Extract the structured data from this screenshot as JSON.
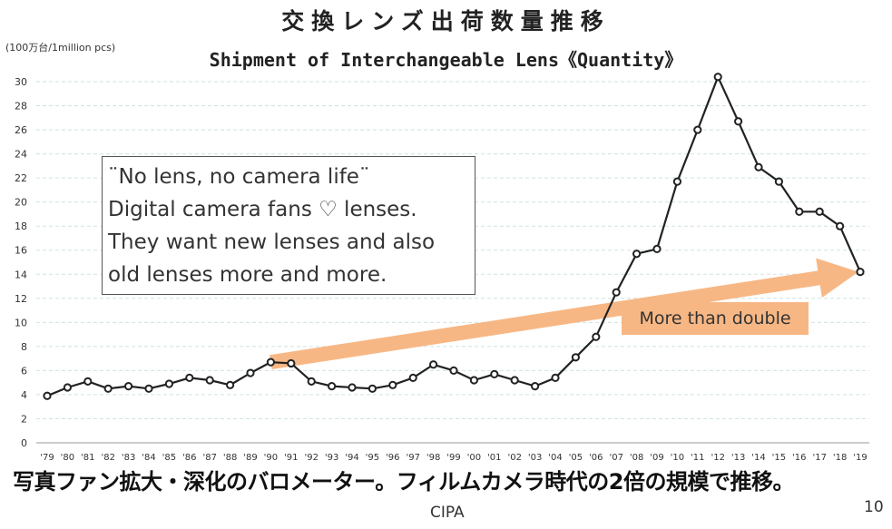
{
  "title_jp": "交換レンズ出荷数量推移",
  "title_en": "Shipment of Interchangeable Lens《Quantity》",
  "unit_label": "(100万台/1million pcs)",
  "callout": {
    "line1": "¨No lens, no camera life¨",
    "line2": "Digital camera fans ♡ lenses.",
    "line3": "They want new lenses and also",
    "line4": "old lenses more and more."
  },
  "trend_annotation": "More than double",
  "bottom_caption": "写真ファン拡大・深化のバロメーター。フィルムカメラ時代の2倍の規模で推移。",
  "source": "CIPA",
  "page_number": "10",
  "colors": {
    "line": "#222222",
    "marker_fill": "#ffffff",
    "arrow": "#f7b784",
    "grid": "#cfe3e3"
  },
  "chart_data": {
    "type": "line",
    "title": "Shipment of Interchangeable Lens《Quantity》",
    "ylabel": "(100万台/1million pcs)",
    "xlabel": "",
    "ylim": [
      0,
      30
    ],
    "yticks": [
      0,
      2,
      4,
      6,
      8,
      10,
      12,
      14,
      16,
      18,
      20,
      22,
      24,
      26,
      28,
      30
    ],
    "grid": true,
    "categories": [
      "'79",
      "'80",
      "'81",
      "'82",
      "'83",
      "'84",
      "'85",
      "'86",
      "'87",
      "'88",
      "'89",
      "'90",
      "'91",
      "'92",
      "'93",
      "'94",
      "'95",
      "'96",
      "'97",
      "'98",
      "'99",
      "'00",
      "'01",
      "'02",
      "'03",
      "'04",
      "'05",
      "'06",
      "'07",
      "'08",
      "'09",
      "'10",
      "'11",
      "'12",
      "'13",
      "'14",
      "'15",
      "'16",
      "'17",
      "'18",
      "'19"
    ],
    "values": [
      3.9,
      4.6,
      5.1,
      4.5,
      4.7,
      4.5,
      4.9,
      5.4,
      5.2,
      4.8,
      5.8,
      6.7,
      6.6,
      5.1,
      4.7,
      4.6,
      4.5,
      4.8,
      5.4,
      6.5,
      6.0,
      5.2,
      5.7,
      5.2,
      4.7,
      5.4,
      7.1,
      8.8,
      12.5,
      15.7,
      16.1,
      21.7,
      26.0,
      30.4,
      26.7,
      22.9,
      21.7,
      19.2,
      19.2,
      18.0,
      14.2
    ],
    "trend_arrow": {
      "from": {
        "x": "'90",
        "y": 6.7
      },
      "to": {
        "x": "'19",
        "y": 14.2
      }
    }
  }
}
